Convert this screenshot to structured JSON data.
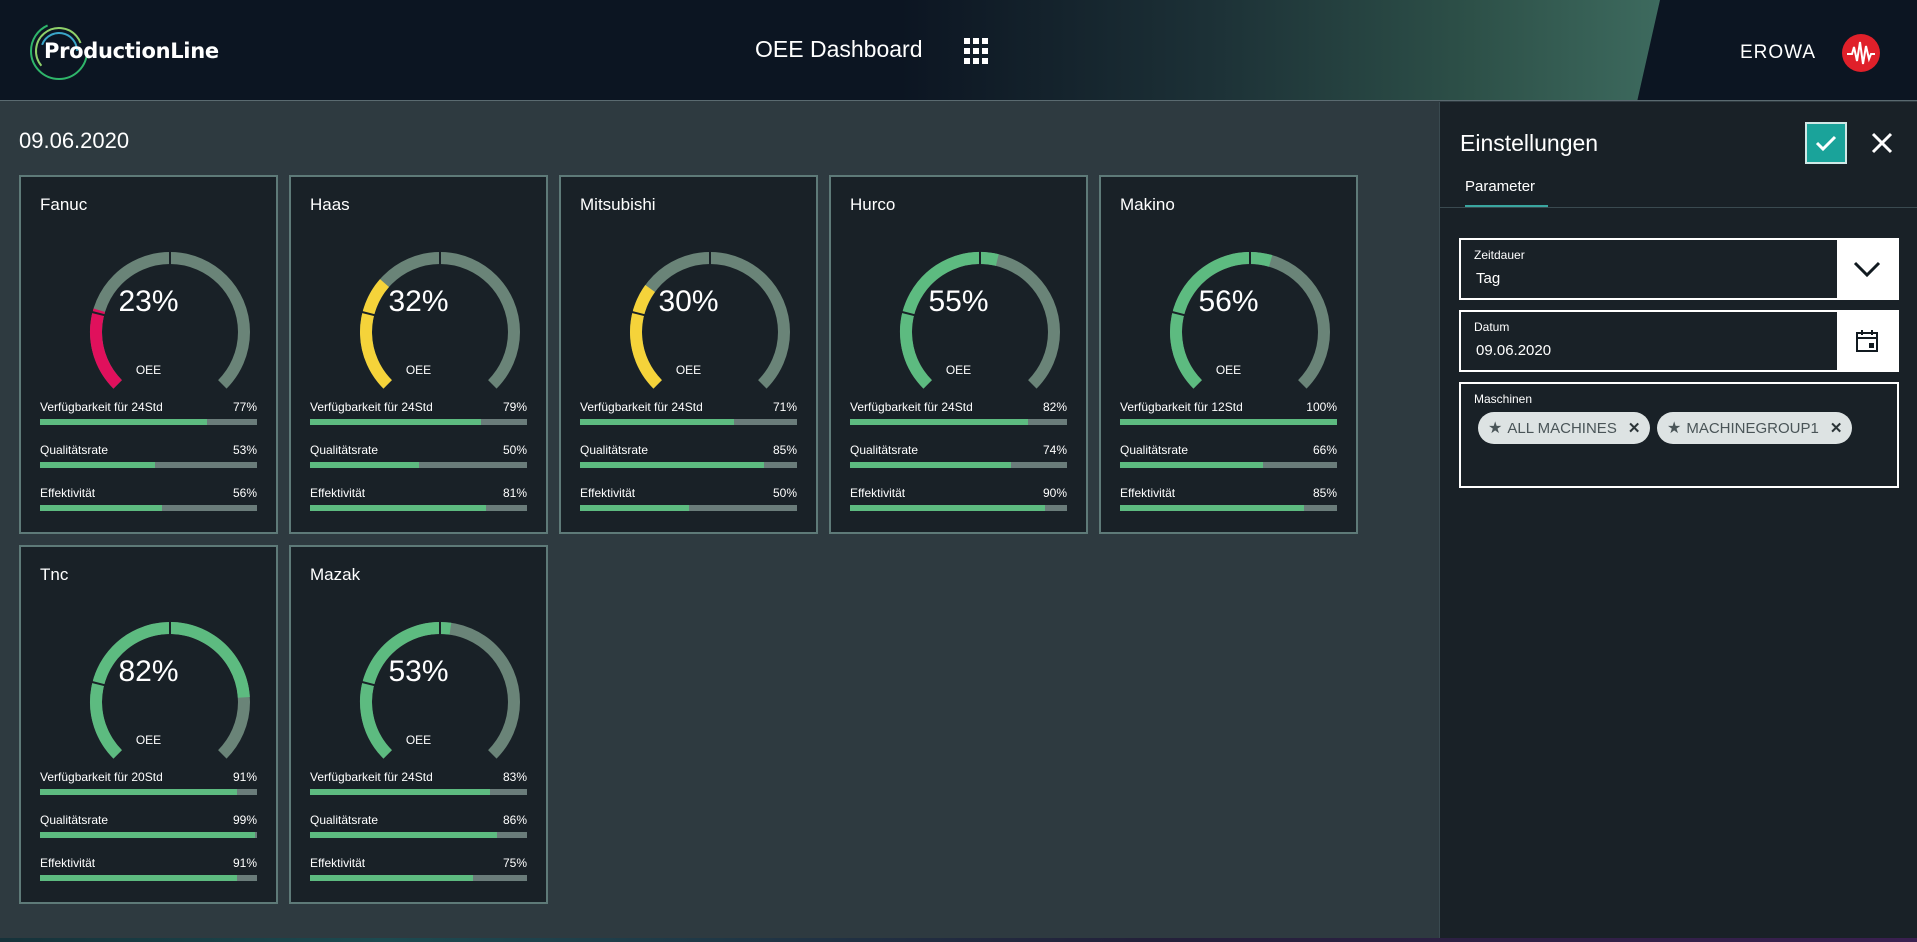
{
  "header": {
    "logo_text": "ProductionLine",
    "title": "OEE Dashboard",
    "apps_icon": "grid-icon",
    "brand": "EROWA",
    "brand_icon": "erowa-logo"
  },
  "main": {
    "date": "09.06.2020",
    "gauge_label": "OEE",
    "machines": [
      {
        "name": "Fanuc",
        "oee": "23%",
        "oee_value": 23,
        "color": "#e0105c",
        "metrics": [
          {
            "label": "Verfügbarkeit für 24Std",
            "value": "77%",
            "pct": 77
          },
          {
            "label": "Qualitätsrate",
            "value": "53%",
            "pct": 53
          },
          {
            "label": "Effektivität",
            "value": "56%",
            "pct": 56
          }
        ]
      },
      {
        "name": "Haas",
        "oee": "32%",
        "oee_value": 32,
        "color": "#f5d33a",
        "metrics": [
          {
            "label": "Verfügbarkeit für 24Std",
            "value": "79%",
            "pct": 79
          },
          {
            "label": "Qualitätsrate",
            "value": "50%",
            "pct": 50
          },
          {
            "label": "Effektivität",
            "value": "81%",
            "pct": 81
          }
        ]
      },
      {
        "name": "Mitsubishi",
        "oee": "30%",
        "oee_value": 30,
        "color": "#f5d33a",
        "metrics": [
          {
            "label": "Verfügbarkeit für 24Std",
            "value": "71%",
            "pct": 71
          },
          {
            "label": "Qualitätsrate",
            "value": "85%",
            "pct": 85
          },
          {
            "label": "Effektivität",
            "value": "50%",
            "pct": 50
          }
        ]
      },
      {
        "name": "Hurco",
        "oee": "55%",
        "oee_value": 55,
        "color": "#5dbb80",
        "metrics": [
          {
            "label": "Verfügbarkeit für 24Std",
            "value": "82%",
            "pct": 82
          },
          {
            "label": "Qualitätsrate",
            "value": "74%",
            "pct": 74
          },
          {
            "label": "Effektivität",
            "value": "90%",
            "pct": 90
          }
        ]
      },
      {
        "name": "Makino",
        "oee": "56%",
        "oee_value": 56,
        "color": "#5dbb80",
        "metrics": [
          {
            "label": "Verfügbarkeit für 12Std",
            "value": "100%",
            "pct": 100
          },
          {
            "label": "Qualitätsrate",
            "value": "66%",
            "pct": 66
          },
          {
            "label": "Effektivität",
            "value": "85%",
            "pct": 85
          }
        ]
      },
      {
        "name": "Tnc",
        "oee": "82%",
        "oee_value": 82,
        "color": "#5dbb80",
        "metrics": [
          {
            "label": "Verfügbarkeit für 20Std",
            "value": "91%",
            "pct": 91
          },
          {
            "label": "Qualitätsrate",
            "value": "99%",
            "pct": 99
          },
          {
            "label": "Effektivität",
            "value": "91%",
            "pct": 91
          }
        ]
      },
      {
        "name": "Mazak",
        "oee": "53%",
        "oee_value": 53,
        "color": "#5dbb80",
        "metrics": [
          {
            "label": "Verfügbarkeit für 24Std",
            "value": "83%",
            "pct": 83
          },
          {
            "label": "Qualitätsrate",
            "value": "86%",
            "pct": 86
          },
          {
            "label": "Effektivität",
            "value": "75%",
            "pct": 75
          }
        ]
      }
    ]
  },
  "settings": {
    "title": "Einstellungen",
    "confirm_icon": "check-icon",
    "close_icon": "close-icon",
    "tab": "Parameter",
    "period": {
      "label": "Zeitdauer",
      "value": "Tag",
      "icon": "chevron-down-icon"
    },
    "date": {
      "label": "Datum",
      "value": "09.06.2020",
      "icon": "calendar-icon"
    },
    "machines": {
      "label": "Maschinen",
      "chips": [
        {
          "label": "ALL MACHINES",
          "icon": "star-icon"
        },
        {
          "label": "MACHINEGROUP1",
          "icon": "star-icon"
        }
      ]
    }
  },
  "colors": {
    "green": "#5dbb80",
    "track": "#6a7c7a",
    "teal": "#1aa39a",
    "card_bg": "#192127",
    "page_bg": "#2e3a40"
  }
}
